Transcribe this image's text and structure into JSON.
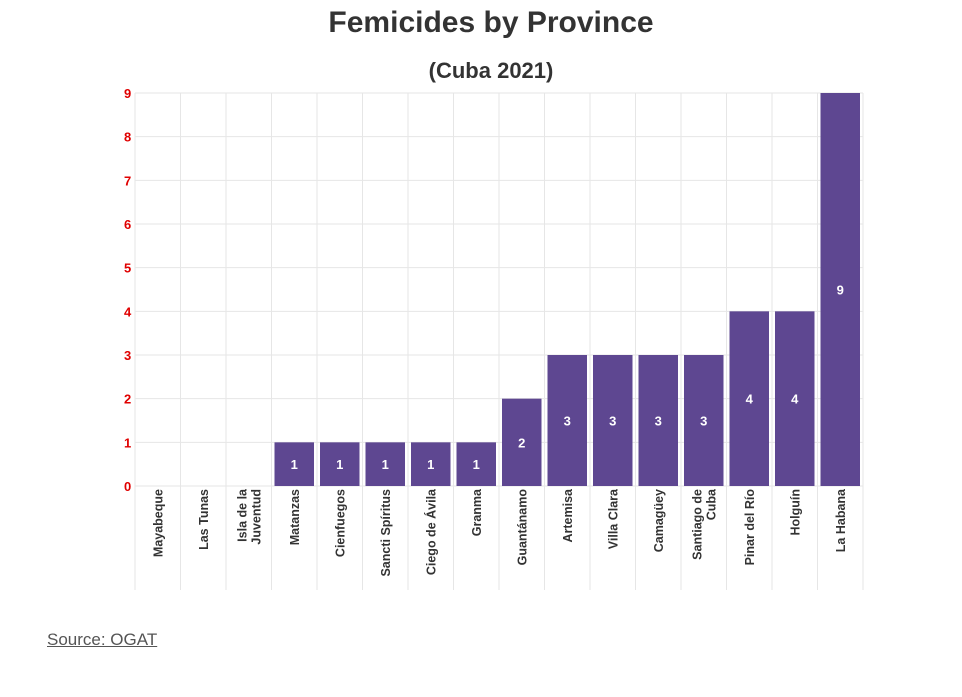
{
  "chart_data": {
    "type": "bar",
    "title": "Femicides by Province",
    "subtitle": "(Cuba 2021)",
    "categories": [
      "Mayabeque",
      "Las Tunas",
      "Isla de la Juventud",
      "Matanzas",
      "Cienfuegos",
      "Sancti Spíritus",
      "Ciego de Ávila",
      "Granma",
      "Guantánamo",
      "Artemisa",
      "Villa Clara",
      "Camagüey",
      "Santiago de Cuba",
      "Pinar del Río",
      "Holguín",
      "La Habana"
    ],
    "category_label_lines": [
      [
        "Mayabeque"
      ],
      [
        "Las Tunas"
      ],
      [
        "Isla de la",
        "Juventud"
      ],
      [
        "Matanzas"
      ],
      [
        "Cienfuegos"
      ],
      [
        "Sancti Spíritus"
      ],
      [
        "Ciego de Ávila"
      ],
      [
        "Granma"
      ],
      [
        "Guantánamo"
      ],
      [
        "Artemisa"
      ],
      [
        "Villa Clara"
      ],
      [
        "Camagüey"
      ],
      [
        "Santiago de",
        "Cuba"
      ],
      [
        "Pinar del Río"
      ],
      [
        "Holguín"
      ],
      [
        "La Habana"
      ]
    ],
    "values": [
      0,
      0,
      0,
      1,
      1,
      1,
      1,
      1,
      2,
      3,
      3,
      3,
      3,
      4,
      4,
      9
    ],
    "yticks": [
      "0",
      "1",
      "2",
      "3",
      "4",
      "5",
      "6",
      "7",
      "8",
      "9"
    ],
    "ylim": [
      0,
      9
    ],
    "xlabel": "",
    "ylabel": "",
    "grid": true,
    "legend": "none",
    "bar_color": "#5e4791",
    "tick_color": "#e00000"
  },
  "source": {
    "label": "Source: OGAT"
  }
}
